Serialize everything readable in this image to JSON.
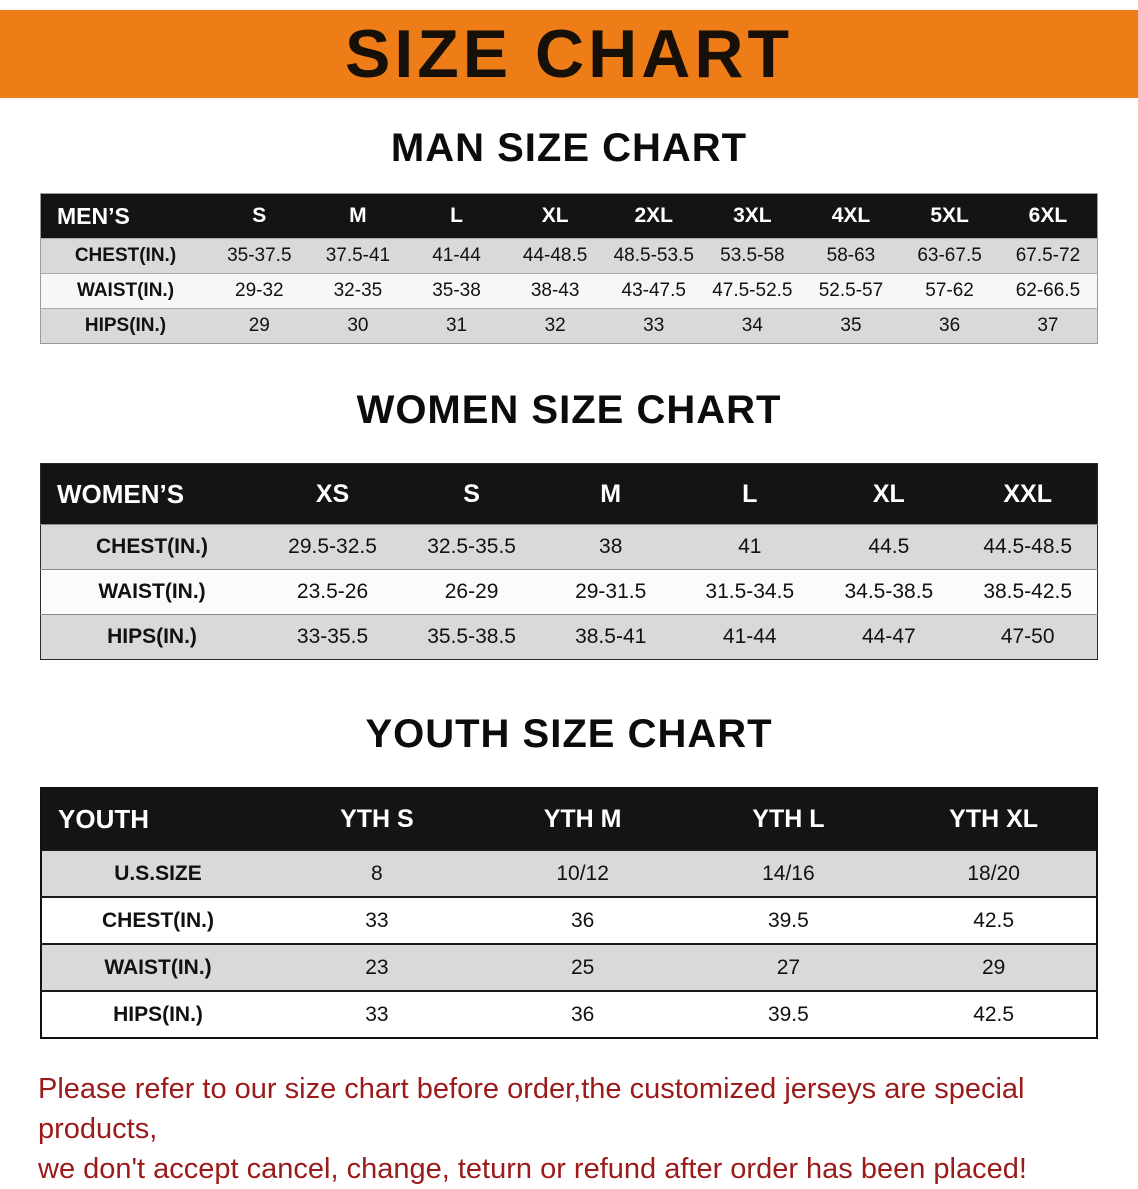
{
  "banner": {
    "title": "SIZE CHART",
    "bg_color": "#ee7c17"
  },
  "men": {
    "heading": "MAN SIZE CHART",
    "header": [
      "MEN’S",
      "S",
      "M",
      "L",
      "XL",
      "2XL",
      "3XL",
      "4XL",
      "5XL",
      "6XL"
    ],
    "rows": [
      {
        "label": "CHEST(IN.)",
        "values": [
          "35-37.5",
          "37.5-41",
          "41-44",
          "44-48.5",
          "48.5-53.5",
          "53.5-58",
          "58-63",
          "63-67.5",
          "67.5-72"
        ]
      },
      {
        "label": "WAIST(IN.)",
        "values": [
          "29-32",
          "32-35",
          "35-38",
          "38-43",
          "43-47.5",
          "47.5-52.5",
          "52.5-57",
          "57-62",
          "62-66.5"
        ]
      },
      {
        "label": "HIPS(IN.)",
        "values": [
          "29",
          "30",
          "31",
          "32",
          "33",
          "34",
          "35",
          "36",
          "37"
        ]
      }
    ]
  },
  "women": {
    "heading": "WOMEN SIZE CHART",
    "header": [
      "WOMEN’S",
      "XS",
      "S",
      "M",
      "L",
      "XL",
      "XXL"
    ],
    "rows": [
      {
        "label": "CHEST(IN.)",
        "values": [
          "29.5-32.5",
          "32.5-35.5",
          "38",
          "41",
          "44.5",
          "44.5-48.5"
        ]
      },
      {
        "label": "WAIST(IN.)",
        "values": [
          "23.5-26",
          "26-29",
          "29-31.5",
          "31.5-34.5",
          "34.5-38.5",
          "38.5-42.5"
        ]
      },
      {
        "label": "HIPS(IN.)",
        "values": [
          "33-35.5",
          "35.5-38.5",
          "38.5-41",
          "41-44",
          "44-47",
          "47-50"
        ]
      }
    ]
  },
  "youth": {
    "heading": "YOUTH SIZE CHART",
    "header": [
      "YOUTH",
      "YTH S",
      "YTH M",
      "YTH L",
      "YTH XL"
    ],
    "rows": [
      {
        "label": "U.S.SIZE",
        "values": [
          "8",
          "10/12",
          "14/16",
          "18/20"
        ]
      },
      {
        "label": "CHEST(IN.)",
        "values": [
          "33",
          "36",
          "39.5",
          "42.5"
        ]
      },
      {
        "label": "WAIST(IN.)",
        "values": [
          "23",
          "25",
          "27",
          "29"
        ]
      },
      {
        "label": "HIPS(IN.)",
        "values": [
          "33",
          "36",
          "39.5",
          "42.5"
        ]
      }
    ]
  },
  "footer": {
    "line1": "Please refer to our size chart before order,the customized jerseys are special products,",
    "line2": "we don't accept cancel, change, teturn or refund after order has been placed!"
  }
}
